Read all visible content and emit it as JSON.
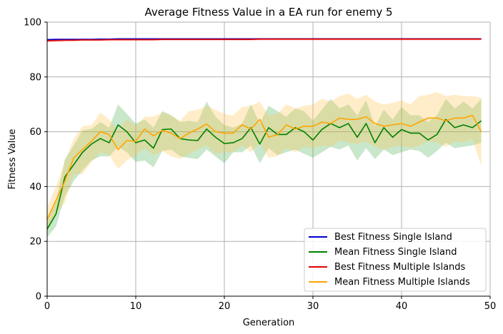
{
  "chart_data": {
    "type": "line",
    "title": "Average Fitness Value in a EA run for enemy 5",
    "xlabel": "Generation",
    "ylabel": "Fitness Value",
    "xlim": [
      0,
      50
    ],
    "ylim": [
      0,
      100
    ],
    "xticks": [
      0,
      10,
      20,
      30,
      40,
      50
    ],
    "yticks": [
      0,
      20,
      40,
      60,
      80,
      100
    ],
    "grid": true,
    "legend_position": "lower-right",
    "x": [
      0,
      1,
      2,
      3,
      4,
      5,
      6,
      7,
      8,
      9,
      10,
      11,
      12,
      13,
      14,
      15,
      16,
      17,
      18,
      19,
      20,
      21,
      22,
      23,
      24,
      25,
      26,
      27,
      28,
      29,
      30,
      31,
      32,
      33,
      34,
      35,
      36,
      37,
      38,
      39,
      40,
      41,
      42,
      43,
      44,
      45,
      46,
      47,
      48,
      49
    ],
    "series": [
      {
        "name": "Best Fitness Single Island",
        "color": "#0000cc",
        "band_color": "#6666ff",
        "values": [
          93.6,
          93.7,
          93.7,
          93.7,
          93.7,
          93.7,
          93.8,
          93.8,
          93.9,
          93.9,
          93.9,
          93.9,
          93.9,
          93.9,
          93.9,
          93.9,
          93.9,
          93.9,
          93.9,
          93.9,
          93.9,
          93.9,
          93.9,
          93.9,
          93.9,
          93.9,
          93.9,
          93.9,
          93.9,
          93.9,
          93.9,
          93.9,
          93.9,
          93.9,
          93.9,
          93.9,
          93.9,
          93.9,
          93.9,
          93.9,
          93.9,
          93.9,
          93.9,
          93.9,
          93.9,
          93.9,
          93.9,
          93.9,
          93.9,
          93.9
        ],
        "lower": [
          93.3,
          93.4,
          93.4,
          93.4,
          93.5,
          93.5,
          93.6,
          93.6,
          93.7,
          93.7,
          93.7,
          93.7,
          93.7,
          93.7,
          93.7,
          93.7,
          93.7,
          93.7,
          93.7,
          93.7,
          93.7,
          93.7,
          93.7,
          93.7,
          93.7,
          93.7,
          93.7,
          93.7,
          93.7,
          93.7,
          93.7,
          93.7,
          93.7,
          93.7,
          93.7,
          93.7,
          93.7,
          93.7,
          93.7,
          93.7,
          93.7,
          93.7,
          93.7,
          93.7,
          93.7,
          93.7,
          93.7,
          93.7,
          93.7,
          93.7
        ],
        "upper": [
          93.9,
          94.0,
          94.0,
          94.0,
          94.0,
          94.0,
          94.0,
          94.0,
          94.1,
          94.1,
          94.1,
          94.1,
          94.1,
          94.1,
          94.1,
          94.1,
          94.1,
          94.1,
          94.1,
          94.1,
          94.1,
          94.1,
          94.1,
          94.1,
          94.1,
          94.1,
          94.1,
          94.1,
          94.1,
          94.1,
          94.1,
          94.1,
          94.1,
          94.1,
          94.1,
          94.1,
          94.1,
          94.1,
          94.1,
          94.1,
          94.1,
          94.1,
          94.1,
          94.1,
          94.1,
          94.1,
          94.1,
          94.1,
          94.1,
          94.1
        ]
      },
      {
        "name": "Mean Fitness Single Island",
        "color": "#008000",
        "band_color": "#4caf50",
        "values": [
          24.5,
          30.0,
          43.5,
          48.0,
          52.5,
          55.5,
          57.5,
          56.0,
          62.5,
          60.0,
          56.0,
          57.0,
          54.0,
          60.8,
          61.0,
          57.5,
          57.0,
          56.8,
          61.0,
          58.0,
          55.7,
          56.0,
          57.5,
          61.5,
          55.5,
          61.5,
          59.0,
          59.0,
          61.5,
          60.0,
          57.0,
          60.8,
          63.0,
          61.5,
          63.0,
          58.0,
          63.0,
          56.0,
          61.5,
          58.0,
          60.8,
          59.5,
          59.5,
          57.0,
          59.0,
          64.5,
          61.5,
          62.5,
          61.5,
          64.0
        ],
        "lower": [
          21.5,
          25.5,
          36.5,
          42.0,
          46.0,
          49.5,
          51.0,
          51.0,
          54.5,
          52.5,
          49.0,
          49.5,
          47.0,
          53.0,
          53.5,
          51.0,
          50.5,
          50.0,
          53.5,
          51.0,
          48.5,
          52.5,
          52.5,
          55.0,
          48.5,
          54.0,
          51.5,
          52.5,
          53.5,
          52.0,
          50.5,
          52.5,
          54.5,
          53.5,
          55.0,
          49.5,
          54.0,
          50.0,
          53.5,
          51.5,
          52.5,
          53.5,
          53.0,
          50.5,
          53.0,
          56.0,
          54.0,
          54.5,
          55.0,
          56.0
        ],
        "upper": [
          27.5,
          34.5,
          50.0,
          55.0,
          60.5,
          61.0,
          63.5,
          61.5,
          70.0,
          66.5,
          63.0,
          64.5,
          61.5,
          67.5,
          66.0,
          63.5,
          64.0,
          63.5,
          71.0,
          65.5,
          62.5,
          61.5,
          63.0,
          70.0,
          63.0,
          69.5,
          67.5,
          65.5,
          68.5,
          67.5,
          64.0,
          68.0,
          72.0,
          68.5,
          70.0,
          66.0,
          71.5,
          62.0,
          68.0,
          64.5,
          69.0,
          66.0,
          66.0,
          63.5,
          66.0,
          72.0,
          68.5,
          71.0,
          68.5,
          72.0
        ]
      },
      {
        "name": "Best Fitness Multiple Islands",
        "color": "#e00000",
        "band_color": "#ff5050",
        "values": [
          93.2,
          93.3,
          93.4,
          93.4,
          93.5,
          93.5,
          93.5,
          93.6,
          93.6,
          93.6,
          93.6,
          93.6,
          93.6,
          93.7,
          93.7,
          93.7,
          93.7,
          93.7,
          93.7,
          93.7,
          93.7,
          93.7,
          93.7,
          93.7,
          93.8,
          93.8,
          93.8,
          93.8,
          93.8,
          93.8,
          93.8,
          93.8,
          93.8,
          93.8,
          93.8,
          93.8,
          93.8,
          93.8,
          93.8,
          93.8,
          93.8,
          93.8,
          93.8,
          93.8,
          93.8,
          93.8,
          93.8,
          93.8,
          93.8,
          93.8
        ],
        "lower": [
          92.7,
          92.8,
          92.9,
          93.0,
          93.1,
          93.1,
          93.1,
          93.2,
          93.2,
          93.2,
          93.2,
          93.2,
          93.2,
          93.3,
          93.3,
          93.3,
          93.3,
          93.3,
          93.3,
          93.3,
          93.3,
          93.3,
          93.3,
          93.3,
          93.4,
          93.4,
          93.4,
          93.4,
          93.4,
          93.4,
          93.4,
          93.4,
          93.4,
          93.4,
          93.4,
          93.4,
          93.4,
          93.4,
          93.4,
          93.4,
          93.4,
          93.4,
          93.4,
          93.4,
          93.4,
          93.4,
          93.4,
          93.4,
          93.4,
          93.4
        ],
        "upper": [
          93.7,
          93.8,
          93.9,
          93.8,
          93.9,
          93.9,
          93.9,
          94.0,
          94.0,
          94.0,
          94.0,
          94.0,
          94.0,
          94.1,
          94.1,
          94.1,
          94.1,
          94.1,
          94.1,
          94.1,
          94.1,
          94.1,
          94.1,
          94.1,
          94.2,
          94.2,
          94.2,
          94.2,
          94.2,
          94.2,
          94.2,
          94.2,
          94.2,
          94.2,
          94.2,
          94.2,
          94.2,
          94.2,
          94.2,
          94.2,
          94.2,
          94.2,
          94.2,
          94.2,
          94.2,
          94.2,
          94.2,
          94.2,
          94.2,
          94.2
        ]
      },
      {
        "name": "Mean Fitness Multiple Islands",
        "color": "#ffa500",
        "band_color": "#ffc34d",
        "values": [
          28.0,
          35.0,
          42.0,
          50.5,
          53.5,
          56.5,
          60.0,
          59.0,
          53.5,
          56.8,
          56.5,
          61.0,
          58.5,
          60.5,
          59.5,
          57.5,
          59.5,
          61.0,
          62.8,
          60.0,
          59.5,
          59.5,
          62.5,
          61.0,
          64.5,
          58.0,
          59.0,
          62.5,
          61.0,
          62.0,
          62.0,
          63.5,
          63.0,
          65.0,
          64.5,
          64.5,
          65.5,
          63.0,
          62.0,
          62.5,
          63.0,
          62.0,
          63.5,
          65.0,
          65.0,
          64.0,
          65.0,
          65.0,
          66.0,
          60.0
        ],
        "lower": [
          24.0,
          30.5,
          34.0,
          44.5,
          44.5,
          49.0,
          52.5,
          51.5,
          46.5,
          49.5,
          51.5,
          54.0,
          51.5,
          53.0,
          51.0,
          50.0,
          52.0,
          53.5,
          55.0,
          52.0,
          52.5,
          52.5,
          55.0,
          52.5,
          56.0,
          50.5,
          51.0,
          54.0,
          52.5,
          54.5,
          54.0,
          55.0,
          54.5,
          57.0,
          56.0,
          55.5,
          56.5,
          54.5,
          53.5,
          54.5,
          55.0,
          54.0,
          55.0,
          56.5,
          56.0,
          54.5,
          56.5,
          56.0,
          57.5,
          47.5
        ],
        "upper": [
          32.5,
          40.0,
          49.0,
          57.5,
          62.0,
          62.5,
          67.0,
          64.5,
          60.5,
          64.5,
          62.0,
          65.5,
          65.5,
          67.0,
          66.0,
          64.0,
          67.5,
          68.0,
          69.5,
          68.0,
          66.5,
          66.0,
          69.0,
          69.5,
          71.0,
          66.0,
          66.5,
          70.0,
          68.5,
          69.5,
          70.0,
          72.0,
          71.0,
          73.0,
          74.0,
          72.0,
          73.5,
          71.0,
          70.0,
          70.5,
          71.5,
          70.0,
          73.0,
          73.5,
          74.5,
          73.0,
          73.5,
          73.0,
          73.0,
          72.5
        ]
      }
    ]
  }
}
